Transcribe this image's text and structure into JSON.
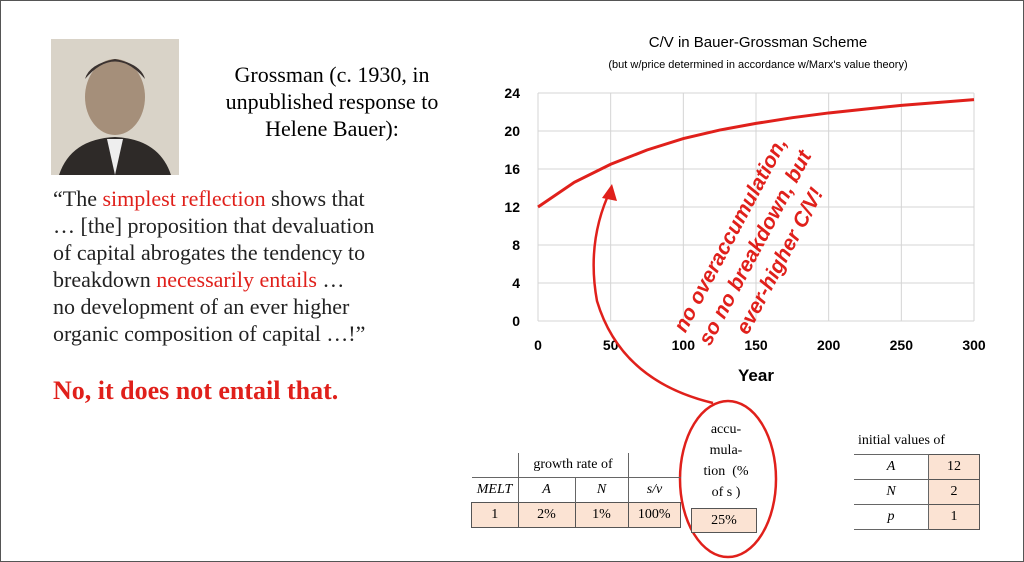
{
  "chart_data": {
    "type": "line",
    "title": "C/V in Bauer-Grossman Scheme",
    "subtitle": "(but w/price determined in accordance w/Marx's value theory)",
    "x_label": "Year",
    "annotation": [
      "no overaccumulation,",
      "so no breakdown, but",
      "ever-higher C/V!"
    ],
    "x": [
      0,
      25,
      50,
      75,
      100,
      125,
      150,
      175,
      200,
      225,
      250,
      275,
      300
    ],
    "values": [
      12,
      14.6,
      16.5,
      18.0,
      19.2,
      20.1,
      20.8,
      21.4,
      21.9,
      22.3,
      22.7,
      23.0,
      23.3
    ],
    "color": "#e0201b",
    "xlim": [
      0,
      300
    ],
    "xticks": [
      0,
      50,
      100,
      150,
      200,
      250,
      300
    ],
    "ylim": [
      0,
      24
    ],
    "yticks": [
      0,
      4,
      8,
      12,
      16,
      20,
      24
    ],
    "grid": true
  },
  "slide": {
    "intro": "Grossman (c. 1930, in unpublished response to Helene Bauer):",
    "quote": [
      "“The ",
      "simplest reflection",
      " shows that",
      "… [the] proposition that devaluation",
      "of capital abrogates the tendency to",
      "breakdown ",
      "necessarily entails",
      " …",
      "no development of an ever higher",
      "organic composition of capital …!”"
    ],
    "verdict": "No, it does not entail that.",
    "params": {
      "header": "growth rate of",
      "columns": [
        "MELT",
        "A",
        "N",
        "s/v"
      ],
      "values": [
        "1",
        "2%",
        "1%",
        "100%"
      ]
    },
    "accumulation": {
      "label": "accu-\nmula-\ntion  (%\nof s )",
      "value": "25%"
    },
    "initial": {
      "title": "initial values of",
      "rows": [
        [
          "A",
          "12"
        ],
        [
          "N",
          "2"
        ],
        [
          "p",
          "1"
        ]
      ]
    }
  }
}
